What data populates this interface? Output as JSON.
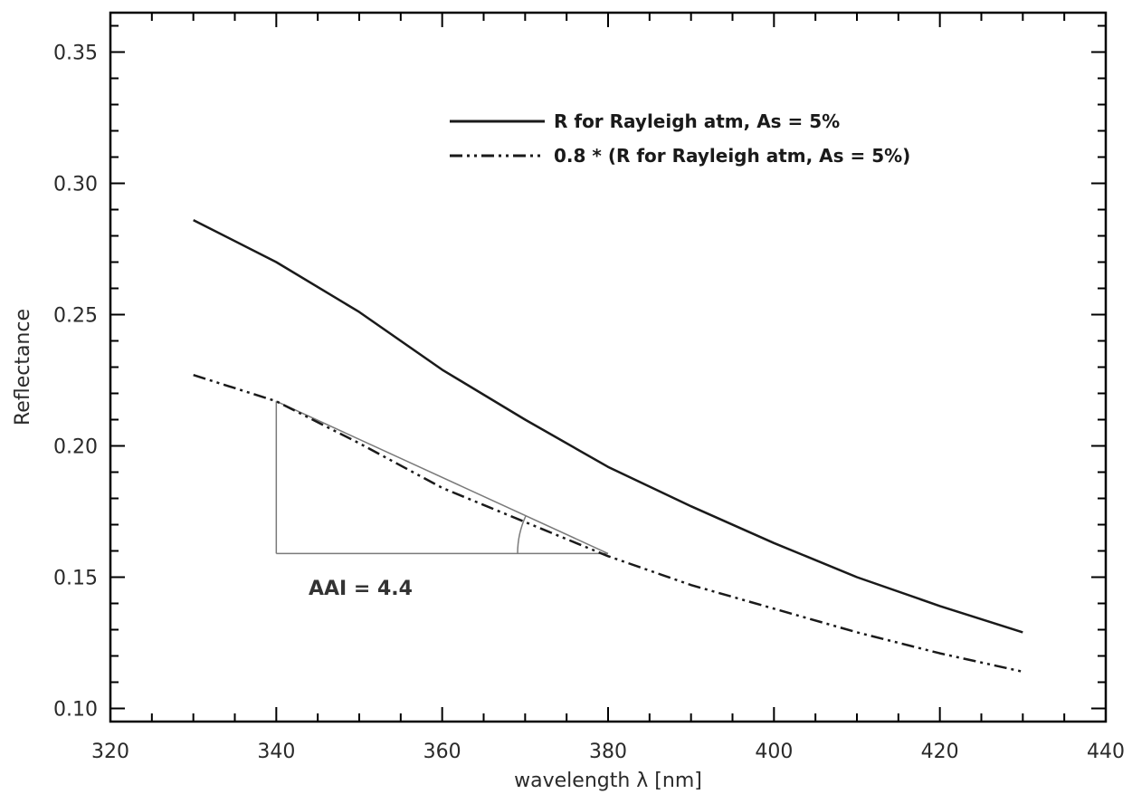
{
  "chart_data": {
    "type": "line",
    "title": "",
    "xlabel": "wavelength λ [nm]",
    "ylabel": "Reflectance",
    "xlim": [
      320,
      440
    ],
    "ylim": [
      0.095,
      0.365
    ],
    "x_ticks": [
      "320",
      "340",
      "360",
      "380",
      "400",
      "420",
      "440"
    ],
    "y_ticks": [
      "0.10",
      "0.15",
      "0.20",
      "0.25",
      "0.30",
      "0.35"
    ],
    "x_tick_values": [
      320,
      340,
      360,
      380,
      400,
      420,
      440
    ],
    "y_tick_values": [
      0.1,
      0.15,
      0.2,
      0.25,
      0.3,
      0.35
    ],
    "grid": false,
    "legend_position": "top-right",
    "series": [
      {
        "name": "R for Rayleigh atm, As = 5%",
        "style": "solid",
        "x": [
          330,
          340,
          350,
          360,
          370,
          380,
          390,
          400,
          410,
          420,
          430
        ],
        "y": [
          0.286,
          0.27,
          0.251,
          0.229,
          0.21,
          0.192,
          0.177,
          0.163,
          0.15,
          0.139,
          0.129
        ]
      },
      {
        "name": "0.8 * (R for Rayleigh atm, As = 5%)",
        "style": "dash-dot",
        "x": [
          330,
          340,
          350,
          360,
          370,
          380,
          390,
          400,
          410,
          420,
          430
        ],
        "y": [
          0.227,
          0.217,
          0.201,
          0.184,
          0.171,
          0.158,
          0.147,
          0.138,
          0.129,
          0.121,
          0.114
        ]
      }
    ],
    "annotations": [
      {
        "text": "AAI = 4.4"
      }
    ],
    "triangle": {
      "x1": 340,
      "x2": 380,
      "y_top": 0.217,
      "y_base": 0.159
    },
    "colors": {
      "line": "#1a1a1a",
      "frame": "#000000",
      "construction": "#7a7a7a"
    }
  }
}
